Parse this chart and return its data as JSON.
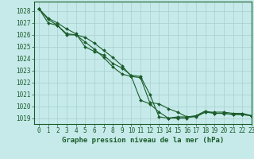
{
  "title": "Graphe pression niveau de la mer (hPa)",
  "background_color": "#c6eaea",
  "grid_color": "#a8cece",
  "line_color": "#1a5c2a",
  "xlim": [
    -0.5,
    23
  ],
  "ylim": [
    1018.5,
    1028.8
  ],
  "xticks": [
    0,
    1,
    2,
    3,
    4,
    5,
    6,
    7,
    8,
    9,
    10,
    11,
    12,
    13,
    14,
    15,
    16,
    17,
    18,
    19,
    20,
    21,
    22,
    23
  ],
  "yticks": [
    1019,
    1020,
    1021,
    1022,
    1023,
    1024,
    1025,
    1026,
    1027,
    1028
  ],
  "series": [
    [
      1028.2,
      1027.4,
      1027.0,
      1026.5,
      1026.1,
      1025.0,
      1024.6,
      1024.3,
      1023.6,
      1023.2,
      1022.6,
      1022.5,
      1021.0,
      1019.1,
      1019.0,
      1019.1,
      1019.1,
      1019.2,
      1019.6,
      1019.4,
      1019.4,
      1019.3,
      1019.3,
      1019.2
    ],
    [
      1028.2,
      1027.3,
      1026.8,
      1026.1,
      1026.0,
      1025.4,
      1024.8,
      1024.1,
      1023.3,
      1022.7,
      1022.5,
      1020.5,
      1020.2,
      1019.5,
      1019.0,
      1019.0,
      1019.0,
      1019.2,
      1019.5,
      1019.4,
      1019.4,
      1019.3,
      1019.3,
      1019.2
    ],
    [
      1028.2,
      1027.0,
      1026.8,
      1026.0,
      1026.0,
      1025.8,
      1025.3,
      1024.7,
      1024.1,
      1023.4,
      1022.5,
      1022.4,
      1020.3,
      1020.2,
      1019.8,
      1019.5,
      1019.1,
      1019.1,
      1019.5,
      1019.5,
      1019.5,
      1019.4,
      1019.4,
      1019.2
    ]
  ],
  "marker": "D",
  "markersize": 2.0,
  "linewidth": 0.8,
  "title_fontsize": 6.5,
  "tick_fontsize": 5.5
}
